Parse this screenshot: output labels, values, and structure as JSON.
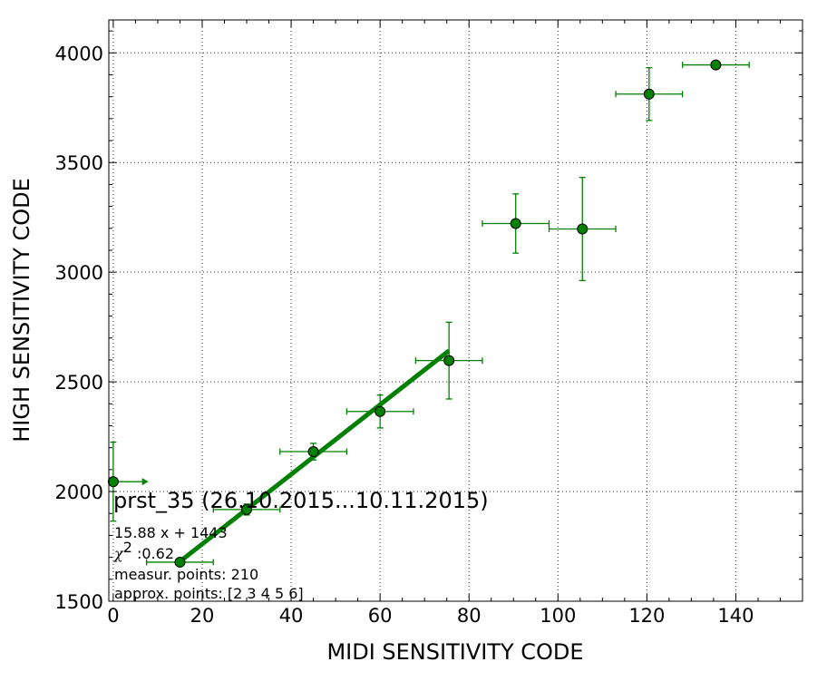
{
  "chart_data": {
    "type": "scatter",
    "xlabel": "MIDI SENSITIVITY CODE",
    "ylabel": "HIGH SENSITIVITY CODE",
    "xlim": [
      -1,
      155
    ],
    "ylim": [
      1500,
      4150
    ],
    "xticks": [
      0,
      20,
      40,
      60,
      80,
      100,
      120,
      140
    ],
    "yticks": [
      1500,
      2000,
      2500,
      3000,
      3500,
      4000
    ],
    "xtick_labels": [
      "0",
      "20",
      "40",
      "60",
      "80",
      "100",
      "120",
      "140"
    ],
    "ytick_labels": [
      "1500",
      "2000",
      "2500",
      "3000",
      "3500",
      "4000"
    ],
    "grid": true,
    "color": "#008000",
    "points": [
      {
        "x": 0,
        "y": 2045,
        "xerr": 7.5,
        "yerr": 180,
        "x_one_sided": true
      },
      {
        "x": 15,
        "y": 1678,
        "xerr": 7.5,
        "yerr": 8
      },
      {
        "x": 30,
        "y": 1918,
        "xerr": 7.5,
        "yerr": 25
      },
      {
        "x": 45,
        "y": 2182,
        "xerr": 7.5,
        "yerr": 38
      },
      {
        "x": 60,
        "y": 2365,
        "xerr": 7.5,
        "yerr": 75
      },
      {
        "x": 75.5,
        "y": 2597,
        "xerr": 7.5,
        "yerr": 175
      },
      {
        "x": 90.5,
        "y": 3222,
        "xerr": 7.5,
        "yerr": 135
      },
      {
        "x": 105.5,
        "y": 3197,
        "xerr": 7.5,
        "yerr": 235
      },
      {
        "x": 120.5,
        "y": 3812,
        "xerr": 7.5,
        "yerr": 120
      },
      {
        "x": 135.5,
        "y": 3945,
        "xerr": 7.5,
        "yerr": 10
      }
    ],
    "fit": {
      "slope": 15.88,
      "intercept": 1443,
      "x_range": [
        15,
        75.5
      ]
    },
    "annotations": {
      "title": "prst_35 (26.10.2015...10.11.2015)",
      "equation": "15.88 x + 1443",
      "chi_symbol": "χ",
      "chi_superscript": "2",
      "chi_value": " :0.62",
      "measur_points": "measur. points: 210",
      "approx_points": "approx. points: [2 3 4 5 6]"
    }
  }
}
